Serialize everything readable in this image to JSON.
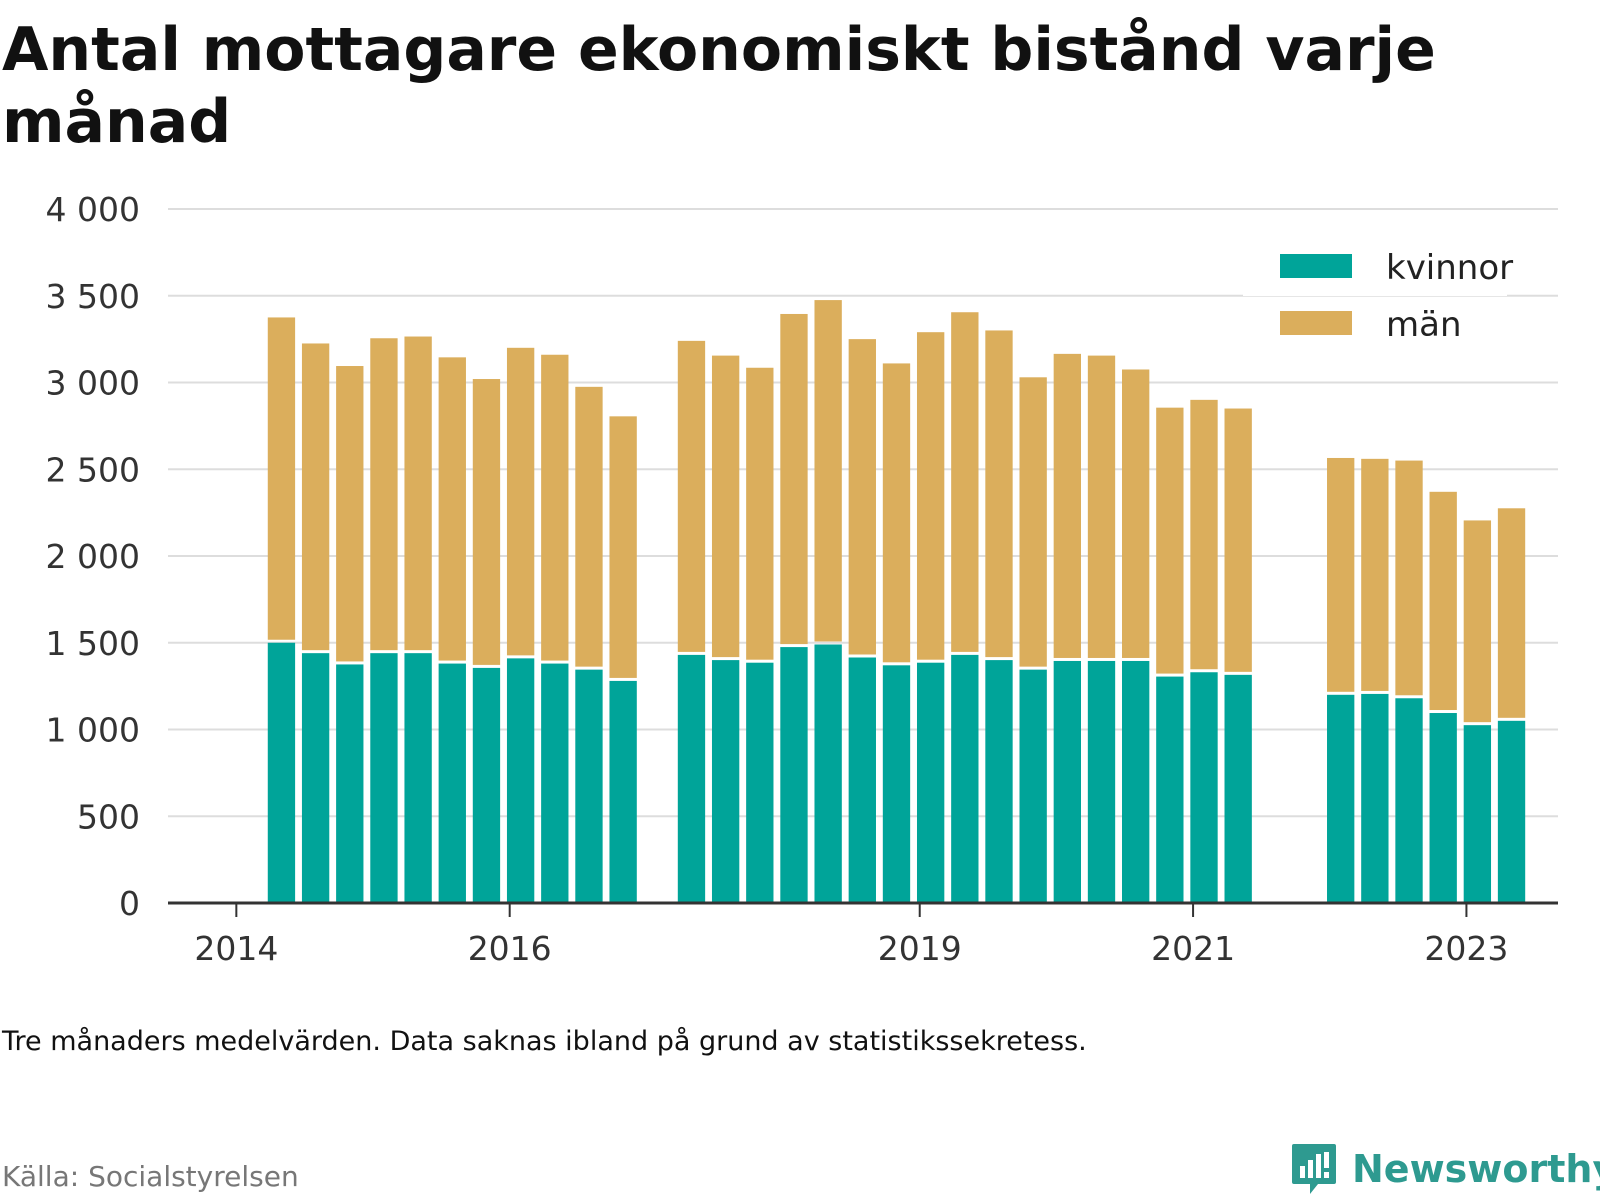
{
  "title": "Antal mottagare ekonomiskt bistånd varje månad",
  "note": "Tre månaders medelvärden. Data saknas ibland på grund av statistikssekretess.",
  "source": "Källa: Socialstyrelsen",
  "brand": "Newsworthy",
  "colors": {
    "kvinnor": "#00a499",
    "man": "#dbae5c",
    "grid": "#dddddd",
    "axis": "#333333",
    "brand": "#2e9a90"
  },
  "chart_data": {
    "type": "bar",
    "stacked": true,
    "ylim": [
      0,
      4000
    ],
    "y_ticks": [
      0,
      500,
      1000,
      1500,
      2000,
      2500,
      3000,
      3500,
      4000
    ],
    "y_tick_labels": [
      "0",
      "500",
      "1 000",
      "1 500",
      "2 000",
      "2 500",
      "3 000",
      "3 500",
      "4 000"
    ],
    "x_ticks": [
      {
        "label": "2014",
        "value": 2014.0
      },
      {
        "label": "2016",
        "value": 2016.0
      },
      {
        "label": "2019",
        "value": 2019.0
      },
      {
        "label": "2021",
        "value": 2021.0
      },
      {
        "label": "2023",
        "value": 2023.0
      }
    ],
    "xlim": [
      2013.5,
      2023.67
    ],
    "bar_width_years": 0.2,
    "legend": {
      "position": "top-right"
    },
    "x": [
      2014.33,
      2014.58,
      2014.83,
      2015.08,
      2015.33,
      2015.58,
      2015.83,
      2016.08,
      2016.33,
      2016.58,
      2016.83,
      2017.33,
      2017.58,
      2017.83,
      2018.08,
      2018.33,
      2018.58,
      2018.83,
      2019.08,
      2019.33,
      2019.58,
      2019.83,
      2020.08,
      2020.33,
      2020.58,
      2020.83,
      2021.08,
      2021.33,
      2022.08,
      2022.33,
      2022.58,
      2022.83,
      2023.08,
      2023.33
    ],
    "series": [
      {
        "name": "kvinnor",
        "values": [
          1500,
          1440,
          1375,
          1440,
          1440,
          1380,
          1355,
          1410,
          1380,
          1345,
          1280,
          1430,
          1400,
          1385,
          1475,
          1490,
          1415,
          1370,
          1385,
          1430,
          1400,
          1345,
          1395,
          1395,
          1395,
          1305,
          1330,
          1315,
          1200,
          1205,
          1180,
          1095,
          1025,
          1050
        ]
      },
      {
        "name": "män",
        "values": [
          1875,
          1785,
          1720,
          1815,
          1825,
          1765,
          1665,
          1790,
          1780,
          1630,
          1525,
          1810,
          1755,
          1700,
          1920,
          1985,
          1835,
          1740,
          1905,
          1975,
          1900,
          1685,
          1770,
          1760,
          1680,
          1550,
          1570,
          1535,
          1365,
          1355,
          1370,
          1275,
          1180,
          1225
        ]
      }
    ]
  }
}
